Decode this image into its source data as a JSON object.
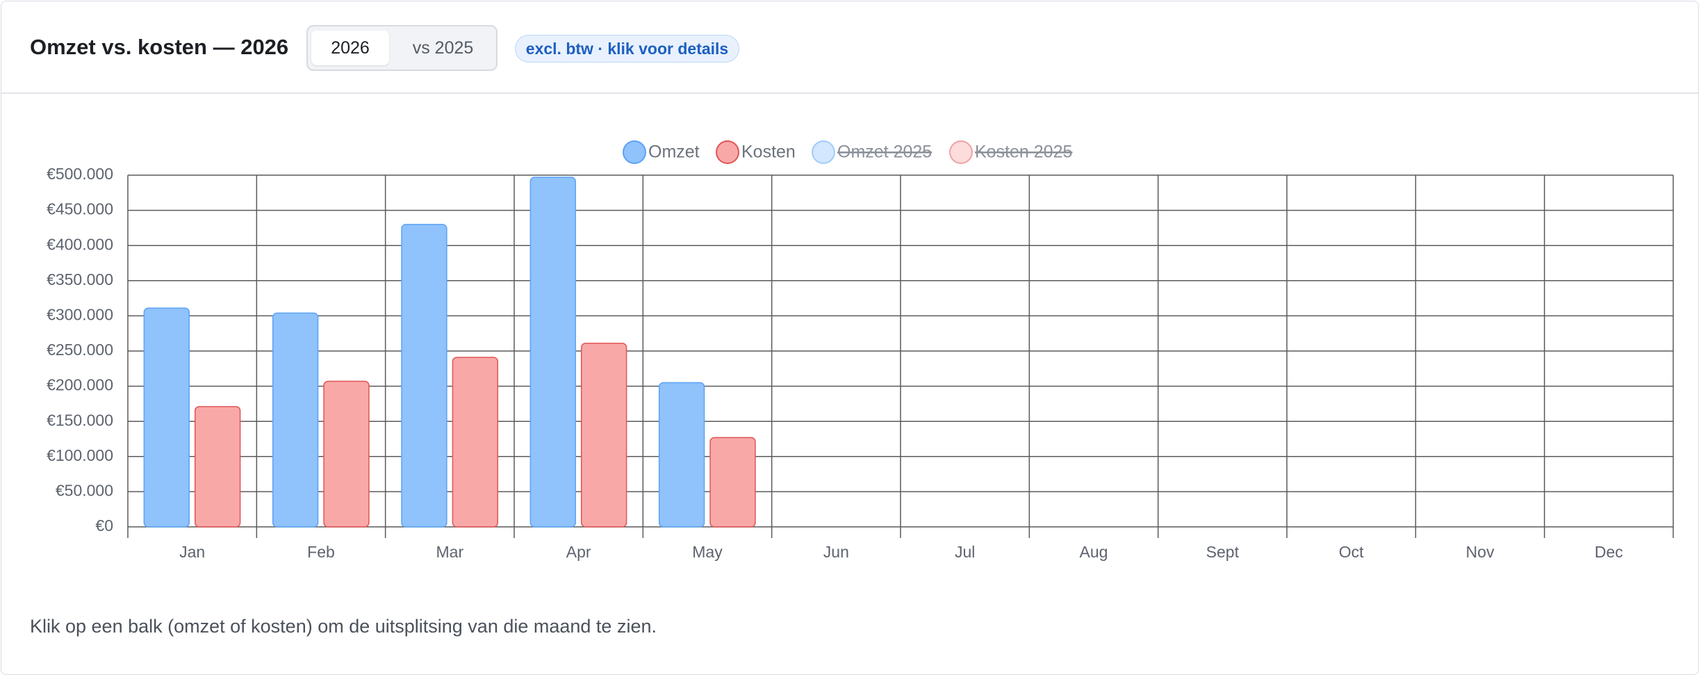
{
  "header": {
    "title": "Omzet vs. kosten — 2026",
    "toggle": [
      "2026",
      "vs 2025"
    ],
    "badge": "excl. btw · klik voor details"
  },
  "chart_data": {
    "type": "bar",
    "categories": [
      "Jan",
      "Feb",
      "Mar",
      "Apr",
      "May",
      "Jun",
      "Jul",
      "Aug",
      "Sept",
      "Oct",
      "Nov",
      "Dec"
    ],
    "series": [
      {
        "name": "Omzet",
        "color": "#90c2fc",
        "values": [
          311000,
          304000,
          430000,
          497000,
          205000,
          null,
          null,
          null,
          null,
          null,
          null,
          null
        ]
      },
      {
        "name": "Kosten",
        "color": "#f9a8a8",
        "values": [
          171000,
          207000,
          241000,
          261000,
          127000,
          null,
          null,
          null,
          null,
          null,
          null,
          null
        ]
      },
      {
        "name": "Omzet 2025",
        "color": "#90c2fc",
        "hidden": true,
        "values": [
          null,
          null,
          null,
          null,
          null,
          null,
          null,
          null,
          null,
          null,
          null,
          null
        ]
      },
      {
        "name": "Kosten 2025",
        "color": "#f9a8a8",
        "hidden": true,
        "values": [
          null,
          null,
          null,
          null,
          null,
          null,
          null,
          null,
          null,
          null,
          null,
          null
        ]
      }
    ],
    "ylim": [
      0,
      500000
    ],
    "yticks": [
      {
        "value": 0,
        "label": "€0"
      },
      {
        "value": 50000,
        "label": "€50.000"
      },
      {
        "value": 100000,
        "label": "€100.000"
      },
      {
        "value": 150000,
        "label": "€150.000"
      },
      {
        "value": 200000,
        "label": "€200.000"
      },
      {
        "value": 250000,
        "label": "€250.000"
      },
      {
        "value": 300000,
        "label": "€300.000"
      },
      {
        "value": 350000,
        "label": "€350.000"
      },
      {
        "value": 400000,
        "label": "€400.000"
      },
      {
        "value": 450000,
        "label": "€450.000"
      },
      {
        "value": 500000,
        "label": "€500.000"
      }
    ],
    "grid": true,
    "legend": "top"
  },
  "footer": "Klik op een balk (omzet of kosten) om de uitsplitsing van die maand te zien."
}
